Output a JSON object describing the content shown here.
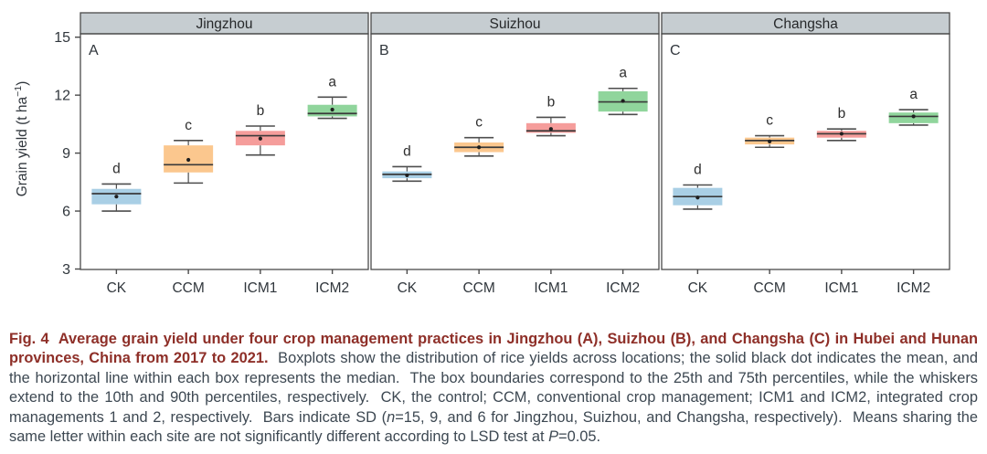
{
  "figure": {
    "caption": {
      "segments": [
        {
          "text": "Fig. 4  Average grain yield under four crop management practices in Jingzhou (A), Suizhou (B), and Changsha (C) in Hubei and Hunan provinces, China from 2017 to 2021.",
          "bold": true,
          "italic": false
        },
        {
          "text": "  Boxplots show the distribution of rice yields across locations; the solid black dot indicates the mean, and the horizontal line within each box represents the median.  The box boundaries correspond to the 25th and 75th percentiles, while the whiskers extend to the 10th and 90th percentiles, respectively.  CK, the control; CCM, conventional crop management; ICM1 and ICM2, integrated crop managements 1 and 2, respectively.  Bars indicate SD (",
          "bold": false,
          "italic": false
        },
        {
          "text": "n",
          "bold": false,
          "italic": true
        },
        {
          "text": "=15, 9, and 6 for Jingzhou, Suizhou, and Changsha, respectively).  Means sharing the same letter within each site are not significantly different according to LSD test at ",
          "bold": false,
          "italic": false
        },
        {
          "text": "P",
          "bold": false,
          "italic": true
        },
        {
          "text": "=0.05.",
          "bold": false,
          "italic": false
        }
      ]
    }
  },
  "chart_data": {
    "type": "boxplot",
    "ylabel_main": "Grain yield (t ha",
    "ylabel_sup": "−1",
    "ylabel_close": ")",
    "ylim": [
      3,
      15
    ],
    "yticks": [
      3,
      6,
      9,
      12,
      15
    ],
    "categories": [
      "CK",
      "CCM",
      "ICM1",
      "ICM2"
    ],
    "legend_position": "none",
    "grid": false,
    "panels": [
      {
        "label": "A",
        "title": "Jingzhou",
        "boxes": [
          {
            "category": "CK",
            "letter": "d",
            "whisker_low": 6.0,
            "q1": 6.35,
            "median": 6.9,
            "mean": 6.75,
            "q3": 7.15,
            "whisker_high": 7.4
          },
          {
            "category": "CCM",
            "letter": "c",
            "whisker_low": 7.45,
            "q1": 8.0,
            "median": 8.4,
            "mean": 8.65,
            "q3": 9.4,
            "whisker_high": 9.65
          },
          {
            "category": "ICM1",
            "letter": "b",
            "whisker_low": 8.9,
            "q1": 9.4,
            "median": 9.9,
            "mean": 9.75,
            "q3": 10.15,
            "whisker_high": 10.4
          },
          {
            "category": "ICM2",
            "letter": "a",
            "whisker_low": 10.8,
            "q1": 10.9,
            "median": 11.05,
            "mean": 11.25,
            "q3": 11.5,
            "whisker_high": 11.9
          }
        ]
      },
      {
        "label": "B",
        "title": "Suizhou",
        "boxes": [
          {
            "category": "CK",
            "letter": "d",
            "whisker_low": 7.55,
            "q1": 7.7,
            "median": 7.9,
            "mean": 7.85,
            "q3": 8.05,
            "whisker_high": 8.3
          },
          {
            "category": "CCM",
            "letter": "c",
            "whisker_low": 8.85,
            "q1": 9.05,
            "median": 9.3,
            "mean": 9.3,
            "q3": 9.55,
            "whisker_high": 9.8
          },
          {
            "category": "ICM1",
            "letter": "b",
            "whisker_low": 9.9,
            "q1": 10.05,
            "median": 10.15,
            "mean": 10.25,
            "q3": 10.55,
            "whisker_high": 10.85
          },
          {
            "category": "ICM2",
            "letter": "a",
            "whisker_low": 11.0,
            "q1": 11.15,
            "median": 11.65,
            "mean": 11.7,
            "q3": 12.2,
            "whisker_high": 12.35
          }
        ]
      },
      {
        "label": "C",
        "title": "Changsha",
        "boxes": [
          {
            "category": "CK",
            "letter": "d",
            "whisker_low": 6.1,
            "q1": 6.3,
            "median": 6.75,
            "mean": 6.7,
            "q3": 7.2,
            "whisker_high": 7.35
          },
          {
            "category": "CCM",
            "letter": "c",
            "whisker_low": 9.3,
            "q1": 9.45,
            "median": 9.65,
            "mean": 9.6,
            "q3": 9.8,
            "whisker_high": 9.9
          },
          {
            "category": "ICM1",
            "letter": "b",
            "whisker_low": 9.65,
            "q1": 9.8,
            "median": 10.0,
            "mean": 10.0,
            "q3": 10.15,
            "whisker_high": 10.25
          },
          {
            "category": "ICM2",
            "letter": "a",
            "whisker_low": 10.45,
            "q1": 10.55,
            "median": 10.9,
            "mean": 10.9,
            "q3": 11.1,
            "whisker_high": 11.25
          }
        ]
      }
    ],
    "colors": {
      "box_fill": {
        "CK": "#a9cfe5",
        "CCM": "#fbc78e",
        "ICM1": "#f59d9b",
        "ICM2": "#90d59c"
      },
      "header_fill": "#c6cdd1",
      "panel_border": "#4a4a4a",
      "whisker": "#4d4d4d",
      "median": "#3a3a3a",
      "mean_dot": "#1f1f1f",
      "axis_text": "#30363c",
      "caption_bold": "#8e2f28",
      "caption_text": "#3d4852"
    }
  }
}
